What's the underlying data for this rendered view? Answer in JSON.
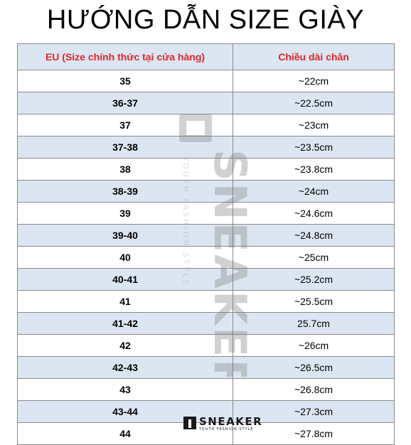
{
  "title": "HƯỚNG DẪN SIZE GIÀY",
  "table": {
    "headers": [
      "EU (Size chính thức tại cửa hàng)",
      "Chiều dài chân"
    ],
    "rows": [
      {
        "eu": "35",
        "length": "~22cm"
      },
      {
        "eu": "36-37",
        "length": "~22.5cm"
      },
      {
        "eu": "37",
        "length": "~23cm"
      },
      {
        "eu": "37-38",
        "length": "~23.5cm"
      },
      {
        "eu": "38",
        "length": "~23.8cm"
      },
      {
        "eu": "38-39",
        "length": "~24cm"
      },
      {
        "eu": "39",
        "length": "~24.6cm"
      },
      {
        "eu": "39-40",
        "length": "~24.8cm"
      },
      {
        "eu": "40",
        "length": "~25cm"
      },
      {
        "eu": "40-41",
        "length": "~25.2cm"
      },
      {
        "eu": "41",
        "length": "~25.5cm"
      },
      {
        "eu": "41-42",
        "length": "25.7cm"
      },
      {
        "eu": "42",
        "length": "~26cm"
      },
      {
        "eu": "42-43",
        "length": "~26.5cm"
      },
      {
        "eu": "43",
        "length": "~26.8cm"
      },
      {
        "eu": "43-44",
        "length": "~27.3cm"
      },
      {
        "eu": "44",
        "length": "~27.8cm"
      }
    ]
  },
  "watermark": {
    "brand": "SNEAKER",
    "tagline": "YOUTH FASHION STYLE"
  },
  "colors": {
    "header_text": "#e0262b",
    "stripe": "#dce6f2",
    "border": "#8a8a8a"
  }
}
